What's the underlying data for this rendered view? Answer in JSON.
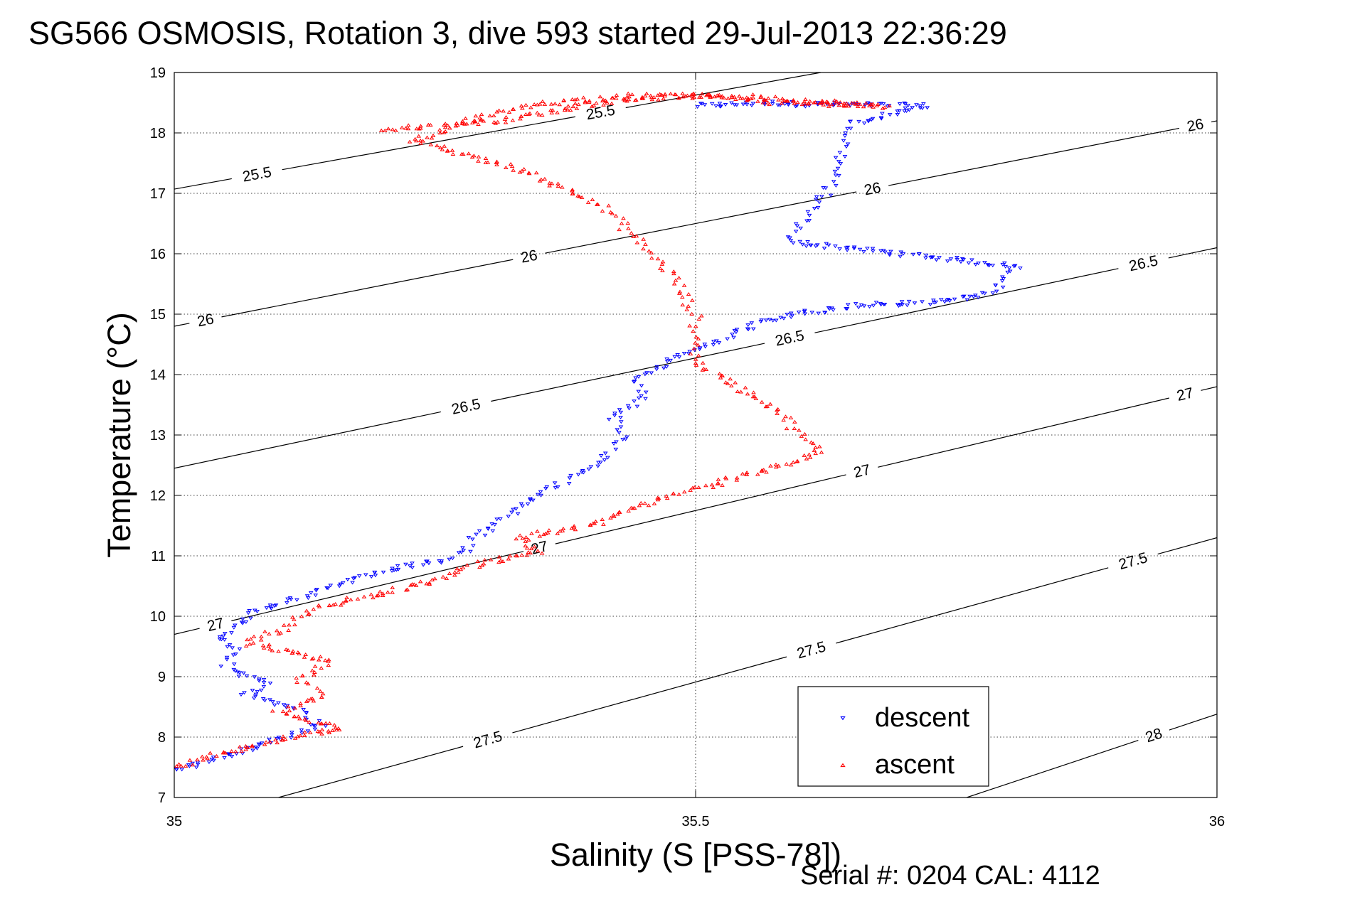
{
  "chart_data": {
    "type": "scatter",
    "title": "SG566 OSMOSIS, Rotation 3, dive 593 started 29-Jul-2013 22:36:29",
    "xlabel": "Salinity (S [PSS-78])",
    "ylabel": "Temperature (°C)",
    "xlim": [
      35,
      36
    ],
    "ylim": [
      7,
      19
    ],
    "xticks": [
      35,
      35.5,
      36
    ],
    "xtick_labels": [
      "35",
      "35.5",
      "36"
    ],
    "yticks": [
      7,
      8,
      9,
      10,
      11,
      12,
      13,
      14,
      15,
      16,
      17,
      18,
      19
    ],
    "ytick_labels": [
      "7",
      "8",
      "9",
      "10",
      "11",
      "12",
      "13",
      "14",
      "15",
      "16",
      "17",
      "18",
      "19"
    ],
    "grid": true,
    "legend_position": "bottom-right",
    "density_contours": [
      {
        "sigma": 25.5,
        "label": "25.5",
        "points": [
          [
            35,
            17.07
          ],
          [
            35.62,
            19.0
          ]
        ],
        "label_at": [
          [
            0.08,
            17.25
          ],
          [
            0.41,
            18.23
          ]
        ]
      },
      {
        "sigma": 26,
        "label": "26",
        "points": [
          [
            35,
            14.8
          ],
          [
            36,
            18.2
          ]
        ],
        "label_at": [
          [
            0.03,
            14.9
          ],
          [
            0.34,
            15.98
          ],
          [
            0.67,
            17.04
          ],
          [
            0.98,
            18.06
          ]
        ]
      },
      {
        "sigma": 26.5,
        "label": "26.5",
        "points": [
          [
            35,
            12.45
          ],
          [
            36,
            16.1
          ]
        ],
        "label_at": [
          [
            0.28,
            13.45
          ],
          [
            0.59,
            14.62
          ],
          [
            0.93,
            15.8
          ]
        ]
      },
      {
        "sigma": 27,
        "label": "27",
        "points": [
          [
            35,
            9.7
          ],
          [
            36,
            13.8
          ]
        ],
        "label_at": [
          [
            0.04,
            9.83
          ],
          [
            0.35,
            11.15
          ],
          [
            0.66,
            12.37
          ],
          [
            0.97,
            13.63
          ]
        ]
      },
      {
        "sigma": 27.5,
        "label": "27.5",
        "points": [
          [
            35.1,
            7.0
          ],
          [
            36,
            11.3
          ]
        ],
        "label_at": [
          [
            0.3,
            8.0
          ],
          [
            0.61,
            9.5
          ],
          [
            0.92,
            10.88
          ]
        ]
      },
      {
        "sigma": 28,
        "label": "28",
        "points": [
          [
            35.76,
            7.0
          ],
          [
            36,
            8.38
          ]
        ],
        "label_at": [
          [
            0.94,
            8.0
          ]
        ]
      }
    ],
    "series": [
      {
        "name": "descent",
        "color": "#0000ff",
        "marker": "triangle-down",
        "path": [
          [
            35.5,
            18.45
          ],
          [
            35.57,
            18.5
          ],
          [
            35.6,
            18.48
          ],
          [
            35.65,
            18.47
          ],
          [
            35.72,
            18.45
          ],
          [
            35.65,
            18.15
          ],
          [
            35.63,
            17.15
          ],
          [
            35.59,
            16.2
          ],
          [
            35.81,
            15.79
          ],
          [
            35.78,
            15.33
          ],
          [
            35.73,
            15.2
          ],
          [
            35.65,
            15.15
          ],
          [
            35.57,
            14.92
          ],
          [
            35.54,
            14.7
          ],
          [
            35.47,
            14.2
          ],
          [
            35.44,
            13.9
          ],
          [
            35.45,
            13.6
          ],
          [
            35.42,
            13.3
          ],
          [
            35.43,
            13.0
          ],
          [
            35.41,
            12.6
          ],
          [
            35.38,
            12.3
          ],
          [
            35.35,
            12.0
          ],
          [
            35.33,
            11.8
          ],
          [
            35.31,
            11.5
          ],
          [
            35.29,
            11.35
          ],
          [
            35.28,
            11.1
          ],
          [
            35.26,
            10.95
          ],
          [
            35.2,
            10.75
          ],
          [
            35.15,
            10.5
          ],
          [
            35.12,
            10.3
          ],
          [
            35.08,
            10.1
          ],
          [
            35.06,
            9.85
          ],
          [
            35.04,
            9.65
          ],
          [
            35.06,
            9.4
          ],
          [
            35.05,
            9.15
          ],
          [
            35.09,
            8.9
          ],
          [
            35.07,
            8.7
          ],
          [
            35.12,
            8.45
          ],
          [
            35.14,
            8.2
          ],
          [
            35.1,
            7.95
          ],
          [
            35.06,
            7.75
          ],
          [
            35.02,
            7.55
          ],
          [
            34.98,
            7.4
          ],
          [
            34.96,
            7.25
          ]
        ],
        "spread": 0.012,
        "noise_t": 0.08
      },
      {
        "name": "ascent",
        "color": "#ff0000",
        "marker": "triangle-up",
        "path": [
          [
            35.2,
            18.05
          ],
          [
            35.31,
            18.2
          ],
          [
            35.41,
            18.5
          ],
          [
            35.47,
            18.6
          ],
          [
            35.55,
            18.6
          ],
          [
            35.65,
            18.48
          ],
          [
            35.68,
            18.44
          ],
          [
            35.58,
            18.5
          ],
          [
            35.52,
            18.62
          ],
          [
            35.44,
            18.62
          ],
          [
            35.34,
            18.45
          ],
          [
            35.28,
            18.2
          ],
          [
            35.25,
            17.97
          ],
          [
            35.23,
            17.86
          ],
          [
            35.33,
            17.4
          ],
          [
            35.4,
            16.9
          ],
          [
            35.42,
            16.65
          ],
          [
            35.44,
            16.3
          ],
          [
            35.46,
            15.95
          ],
          [
            35.48,
            15.6
          ],
          [
            35.49,
            15.25
          ],
          [
            35.5,
            14.95
          ],
          [
            35.5,
            14.6
          ],
          [
            35.5,
            14.2
          ],
          [
            35.52,
            14.0
          ],
          [
            35.56,
            13.6
          ],
          [
            35.58,
            13.4
          ],
          [
            35.6,
            13.0
          ],
          [
            35.62,
            12.7
          ],
          [
            35.55,
            12.35
          ],
          [
            35.5,
            12.1
          ],
          [
            35.46,
            11.9
          ],
          [
            35.4,
            11.5
          ],
          [
            35.33,
            11.3
          ],
          [
            35.35,
            11.05
          ],
          [
            35.3,
            10.9
          ],
          [
            35.25,
            10.6
          ],
          [
            35.19,
            10.35
          ],
          [
            35.13,
            10.1
          ],
          [
            35.11,
            9.85
          ],
          [
            35.07,
            9.55
          ],
          [
            35.15,
            9.25
          ],
          [
            35.12,
            8.95
          ],
          [
            35.14,
            8.7
          ],
          [
            35.1,
            8.4
          ],
          [
            35.16,
            8.15
          ],
          [
            35.1,
            7.95
          ],
          [
            35.04,
            7.7
          ],
          [
            34.99,
            7.45
          ],
          [
            34.96,
            7.25
          ]
        ],
        "spread": 0.012,
        "noise_t": 0.08
      }
    ]
  },
  "legend": {
    "entries": [
      {
        "name": "descent",
        "color": "#0000ff",
        "marker": "triangle-down"
      },
      {
        "name": "ascent",
        "color": "#ff0000",
        "marker": "triangle-up"
      }
    ]
  },
  "footer": {
    "serial": "Serial #: 0204  CAL: 4112"
  }
}
